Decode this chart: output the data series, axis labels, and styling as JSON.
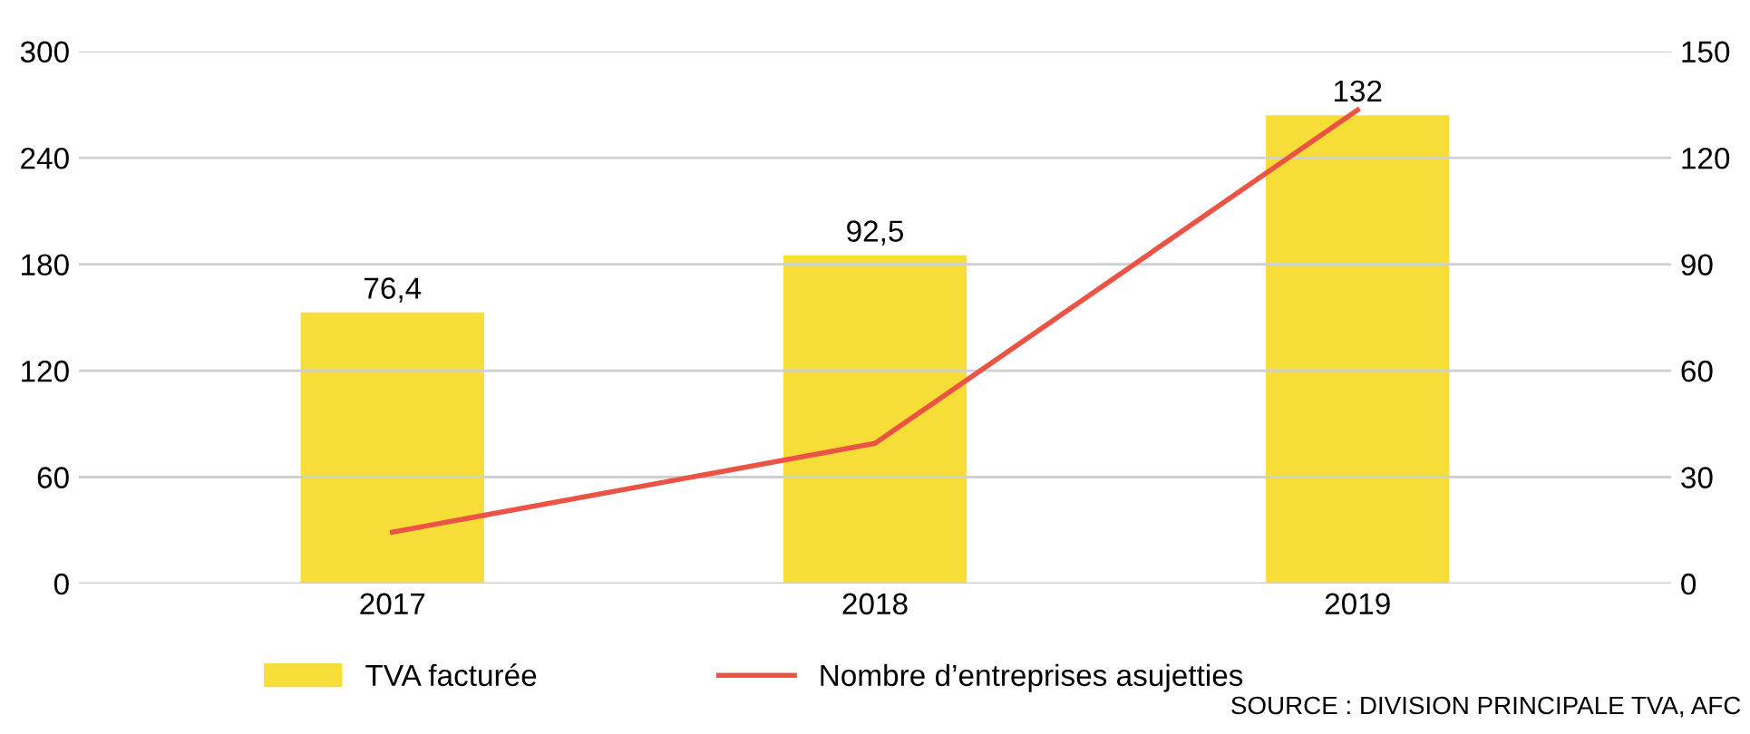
{
  "chart_data": {
    "type": "bar",
    "categories": [
      "2017",
      "2018",
      "2019"
    ],
    "series": [
      {
        "name": "TVA facturée",
        "axis": "y2",
        "color": "#f7dd38",
        "values": [
          76.4,
          92.5,
          132
        ],
        "value_labels": [
          "76,4",
          "92,5",
          "132"
        ]
      },
      {
        "name": "Nombre d’entreprises asujetties",
        "type": "line",
        "axis": "y",
        "color": "#eb5344",
        "values": [
          29,
          79,
          267
        ]
      }
    ],
    "ylim": [
      0,
      300
    ],
    "yticks": [
      0,
      60,
      120,
      180,
      240,
      300
    ],
    "y2lim": [
      0,
      150
    ],
    "y2ticks": [
      0,
      30,
      60,
      90,
      120,
      150
    ],
    "grid": "y",
    "legend": "bottom",
    "marker": "none",
    "line_style": "solid",
    "annotations": [
      "SOURCE : DIVISION PRINCIPALE TVA, AFC"
    ]
  }
}
